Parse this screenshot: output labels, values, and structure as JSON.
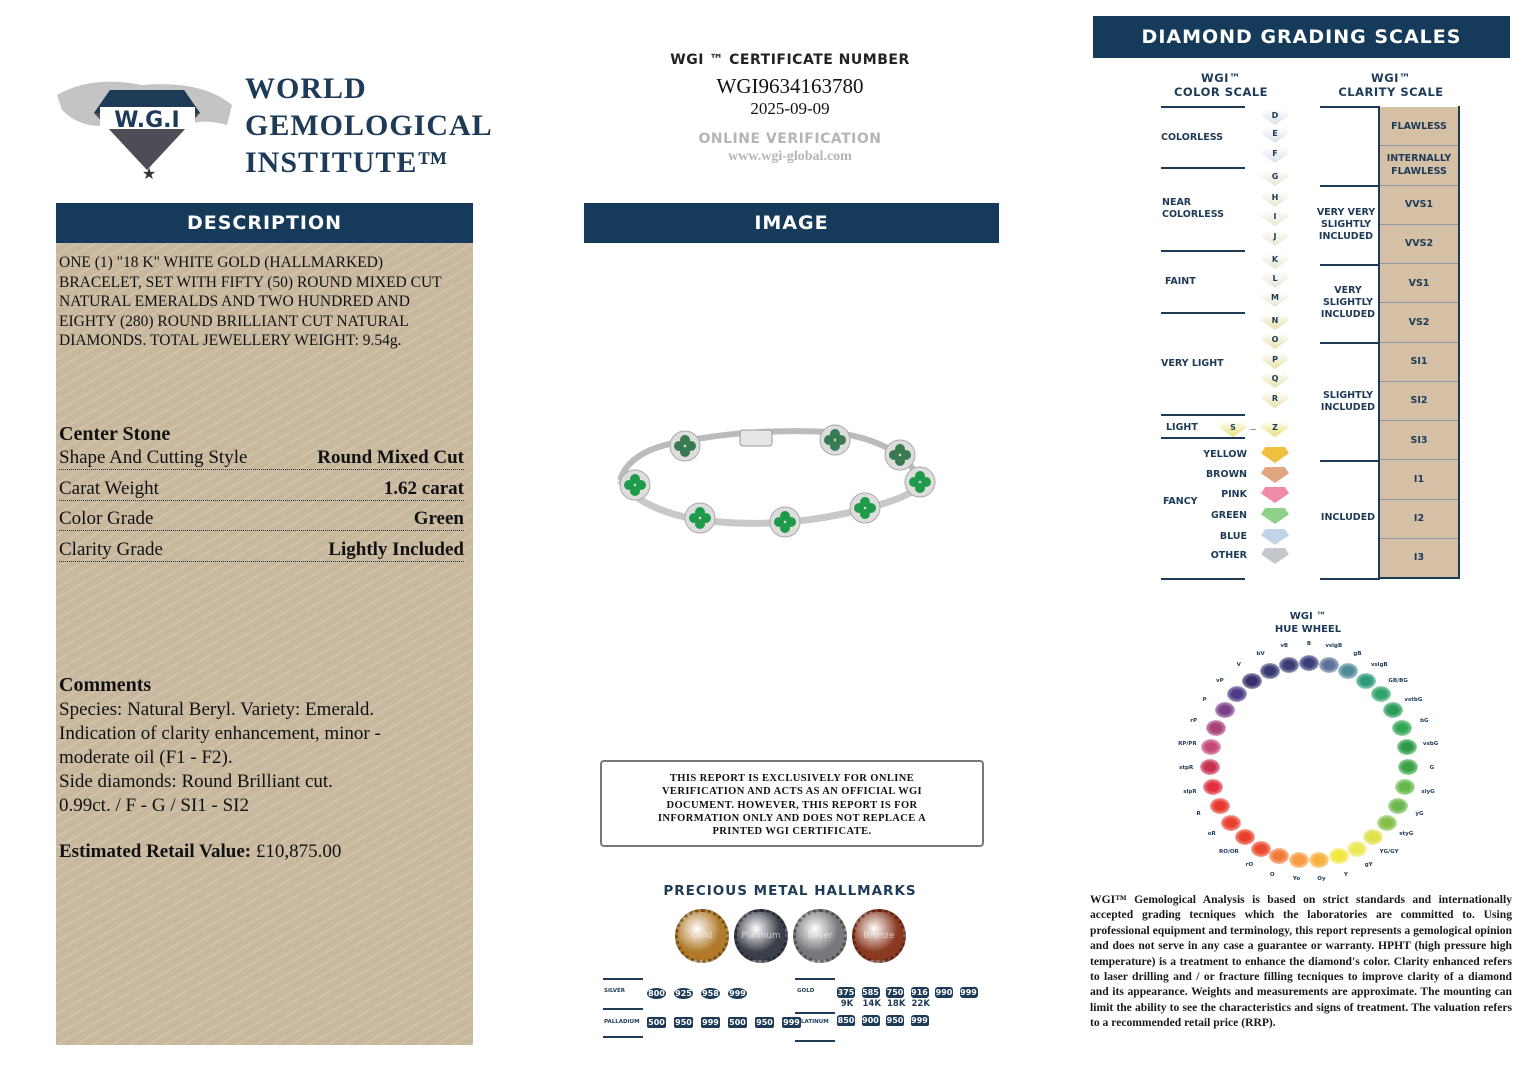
{
  "logo": {
    "emblem_text": "WORLD GEMOLOGICAL INSTITUTE",
    "emblem_initials": "W.G.I",
    "line1": "WORLD",
    "line2": "GEMOLOGICAL",
    "line3": "INSTITUTE™"
  },
  "certificate": {
    "label": "WGI ™ CERTIFICATE NUMBER",
    "number": "WGI9634163780",
    "date": "2025-09-09",
    "verification_label": "ONLINE VERIFICATION",
    "url": "www.wgi-global.com"
  },
  "description": {
    "header": "DESCRIPTION",
    "text": "ONE (1) \"18 K\" WHITE GOLD (HALLMARKED) BRACELET, SET WITH FIFTY (50) ROUND MIXED CUT NATURAL EMERALDS AND TWO HUNDRED AND EIGHTY (280) ROUND BRILLIANT CUT NATURAL DIAMONDS. TOTAL JEWELLERY WEIGHT: 9.54g.",
    "center_stone_title": "Center Stone",
    "rows": [
      {
        "label": "Shape And Cutting Style",
        "value": "Round Mixed Cut"
      },
      {
        "label": "Carat Weight",
        "value": "1.62 carat"
      },
      {
        "label": "Color Grade",
        "value": "Green"
      },
      {
        "label": "Clarity Grade",
        "value": "Lightly Included"
      }
    ],
    "comments_title": "Comments",
    "comments": [
      "Species: Natural Beryl. Variety: Emerald.",
      "Indication of clarity enhancement, minor -",
      "moderate oil (F1 - F2).",
      "Side diamonds: Round Brilliant cut.",
      "0.99ct. / F - G / SI1 - SI2"
    ],
    "retail_label": "Estimated Retail Value:",
    "retail_value": "£10,875.00"
  },
  "image": {
    "header": "IMAGE"
  },
  "disclaimer": "THIS REPORT IS EXCLUSIVELY FOR ONLINE VERIFICATION AND ACTS AS AN OFFICIAL WGI DOCUMENT. HOWEVER, THIS REPORT IS FOR INFORMATION ONLY AND DOES NOT REPLACE A PRINTED WGI CERTIFICATE.",
  "hallmarks": {
    "title": "PRECIOUS METAL HALLMARKS",
    "coins": [
      {
        "label": "Gold",
        "color": "#b07a2a"
      },
      {
        "label": "Platinum",
        "color": "#3b3f4a"
      },
      {
        "label": "Silver",
        "color": "#77787c"
      },
      {
        "label": "Bronze",
        "color": "#8a3a22"
      }
    ],
    "silver": {
      "label": "SILVER",
      "marks": [
        "800",
        "925",
        "958",
        "999"
      ]
    },
    "palladium": {
      "label": "PALLADIUM",
      "marks": [
        "500",
        "950",
        "999",
        "500",
        "950",
        "999"
      ]
    },
    "gold": {
      "label": "GOLD",
      "marks": [
        "375",
        "585",
        "750",
        "916",
        "990",
        "999"
      ],
      "karats": [
        "9K",
        "14K",
        "18K",
        "22K"
      ]
    },
    "platinum": {
      "label": "PLATINUM",
      "marks": [
        "850",
        "900",
        "950",
        "999"
      ]
    }
  },
  "grading": {
    "header": "DIAMOND GRADING  SCALES",
    "color_scale_title": [
      "WGI™",
      "COLOR SCALE"
    ],
    "clarity_scale_title": [
      "WGI™",
      "CLARITY SCALE"
    ],
    "color_groups": [
      "COLORLESS",
      "NEAR COLORLESS",
      "FAINT",
      "VERY LIGHT",
      "LIGHT",
      "FANCY"
    ],
    "grades": [
      "D",
      "E",
      "F",
      "G",
      "H",
      "I",
      "J",
      "K",
      "L",
      "M",
      "N",
      "O",
      "P",
      "Q",
      "R",
      "S",
      "Z"
    ],
    "fancy": [
      {
        "label": "YELLOW",
        "color": "#f0c040"
      },
      {
        "label": "BROWN",
        "color": "#e0a680"
      },
      {
        "label": "PINK",
        "color": "#ef8aa8"
      },
      {
        "label": "GREEN",
        "color": "#8fd08a"
      },
      {
        "label": "BLUE",
        "color": "#c2d4e8"
      },
      {
        "label": "OTHER",
        "color": "#c4c8cc"
      }
    ],
    "clarity_groups": [
      "VERY VERY SLIGHTLY INCLUDED",
      "VERY SLIGHTLY INCLUDED",
      "SLIGHTLY INCLUDED",
      "INCLUDED"
    ],
    "clarity_grades": [
      "FLAWLESS",
      "INTERNALLY FLAWLESS",
      "VVS1",
      "VVS2",
      "VS1",
      "VS2",
      "SI1",
      "SI2",
      "SI3",
      "I1",
      "I2",
      "I3"
    ]
  },
  "hue_wheel": {
    "title": [
      "WGI ™",
      "HUE WHEEL"
    ],
    "hues": [
      {
        "label": "B",
        "color": "#3a3f7a"
      },
      {
        "label": "vslgB",
        "color": "#5c7398"
      },
      {
        "label": "gB",
        "color": "#4e8a98"
      },
      {
        "label": "vslgB",
        "color": "#2e9a7e"
      },
      {
        "label": "GB/BG",
        "color": "#2fa36a"
      },
      {
        "label": "vstbG",
        "color": "#2a9c5a"
      },
      {
        "label": "bG",
        "color": "#35a554"
      },
      {
        "label": "vsbG",
        "color": "#2d9a48"
      },
      {
        "label": "G",
        "color": "#3aa445"
      },
      {
        "label": "slyG",
        "color": "#66b84a"
      },
      {
        "label": "yG",
        "color": "#6cb84c"
      },
      {
        "label": "styG",
        "color": "#84bf4a"
      },
      {
        "label": "YG/GY",
        "color": "#dfe04a"
      },
      {
        "label": "gY",
        "color": "#ece85a"
      },
      {
        "label": "Y",
        "color": "#f2e640"
      },
      {
        "label": "Oy",
        "color": "#f5b040"
      },
      {
        "label": "Yo",
        "color": "#f59a40"
      },
      {
        "label": "O",
        "color": "#f07a3a"
      },
      {
        "label": "rO",
        "color": "#ec4a30"
      },
      {
        "label": "RO/OR",
        "color": "#e8402c"
      },
      {
        "label": "oR",
        "color": "#e84030"
      },
      {
        "label": "R",
        "color": "#e63a2e"
      },
      {
        "label": "slpR",
        "color": "#e03040"
      },
      {
        "label": "stpR",
        "color": "#c83050"
      },
      {
        "label": "RP/PR",
        "color": "#c44a78"
      },
      {
        "label": "rP",
        "color": "#a8407a"
      },
      {
        "label": "P",
        "color": "#7a4088"
      },
      {
        "label": "vP",
        "color": "#4f3a86"
      },
      {
        "label": "V",
        "color": "#35306a"
      },
      {
        "label": "bV",
        "color": "#363a70"
      },
      {
        "label": "vB",
        "color": "#3a3a74"
      }
    ]
  },
  "footnote": "WGI™ Gemological Analysis is based on strict standards and internationally accepted grading tecniques which the laboratories are committed to. Using professional equipment and terminology, this report represents a gemological opinion and does not serve in any case a guarantee or warranty. HPHT (high pressure high temperature) is a treatment to enhance the diamond's color. Clarity enhanced refers to laser drilling and / or fracture filling tecniques to improve clarity of a diamond and its appearance. Weights and measurements are approximate. The mounting can limit the ability to see the characteristics and signs of treatment. The valuation refers to a recommended retail price (RRP)."
}
